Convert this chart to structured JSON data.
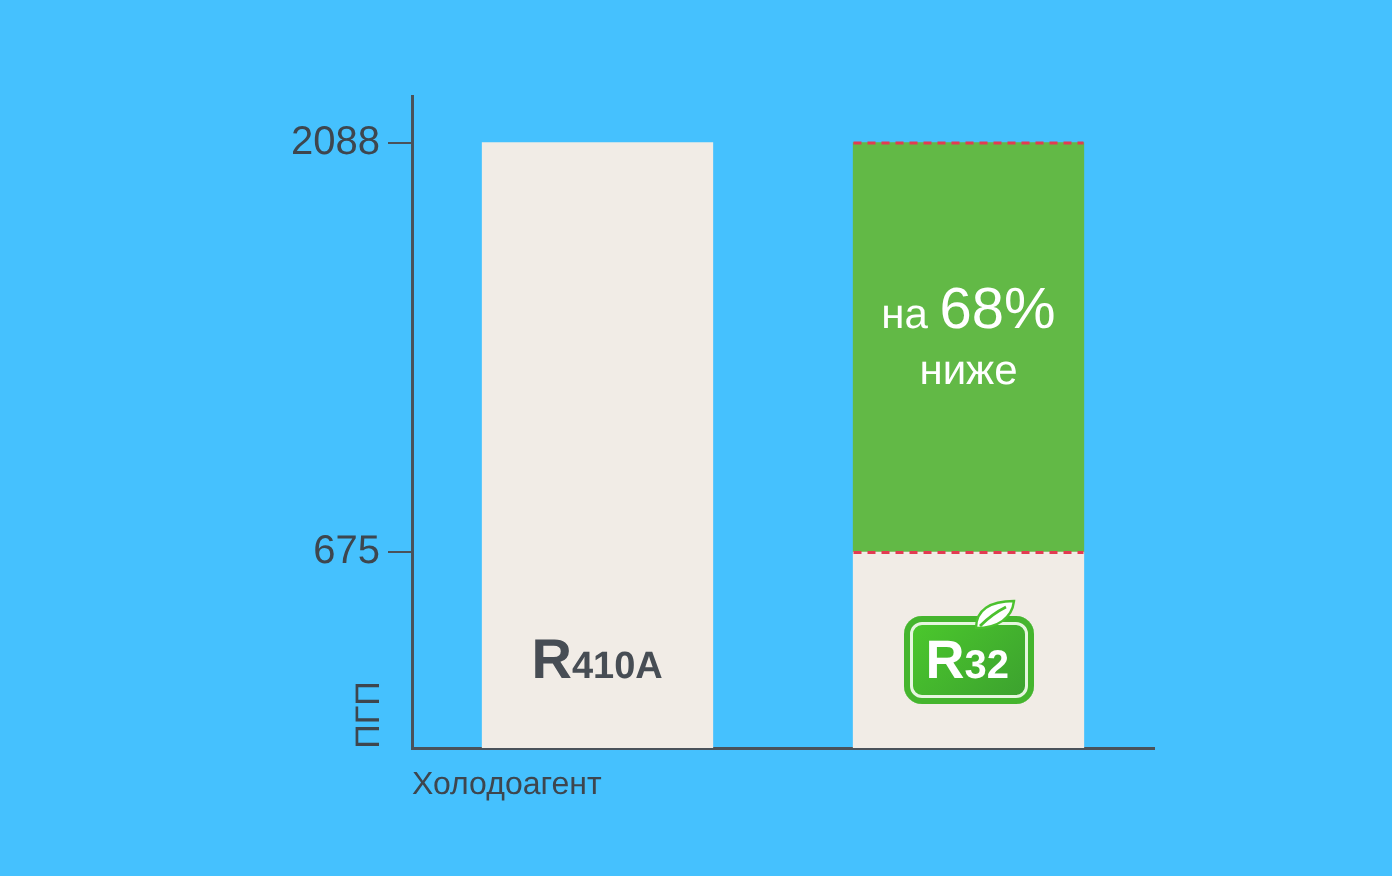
{
  "chart_data": {
    "type": "bar",
    "xlabel": "Холодоагент",
    "ylabel": "ПГП",
    "categories": [
      "R410A",
      "R32"
    ],
    "stacked": true,
    "series": [
      {
        "color": "#f1ece6",
        "values": [
          2088,
          675
        ]
      },
      {
        "color": "#62b946",
        "values": [
          null,
          1413
        ]
      }
    ],
    "ylim": [
      0,
      2250
    ],
    "yticks": [
      675,
      2088
    ],
    "legend": false,
    "annotations": [
      "на 68% ниже"
    ],
    "ref_lines": [
      {
        "axis": "y",
        "value": 2088,
        "color": "#e33b52",
        "line_style": "dashed"
      },
      {
        "axis": "y",
        "value": 675,
        "color": "#e33b52",
        "line_style": "dashed"
      }
    ]
  }
}
